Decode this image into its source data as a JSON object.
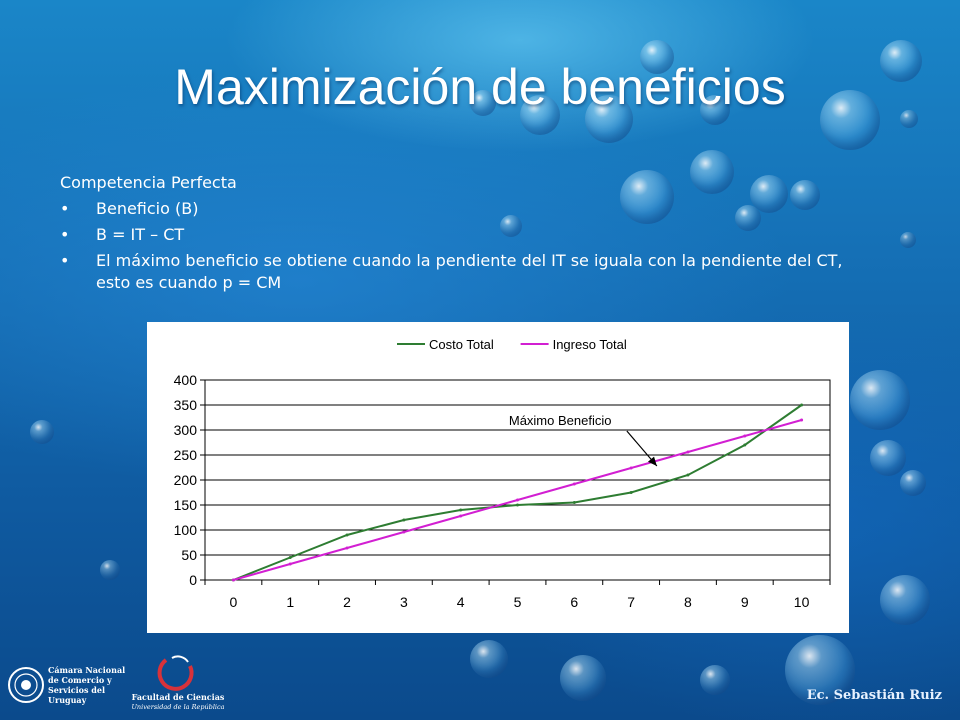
{
  "slide": {
    "title": "Maximización de beneficios",
    "subtitle": "Competencia Perfecta",
    "bullets": [
      "Beneficio (B)",
      "B = IT – CT",
      "El máximo beneficio se obtiene cuando la pendiente del IT se iguala con la pendiente del CT, esto es cuando p = CM"
    ],
    "bullet_glyph": "•"
  },
  "chart_data": {
    "type": "line",
    "x": [
      0,
      1,
      2,
      3,
      4,
      5,
      6,
      7,
      8,
      9,
      10
    ],
    "series": [
      {
        "name": "Costo Total",
        "color": "#2e7d32",
        "values": [
          0,
          45,
          90,
          120,
          140,
          150,
          155,
          175,
          210,
          270,
          350
        ]
      },
      {
        "name": "Ingreso Total",
        "color": "#d21fd2",
        "values": [
          0,
          32,
          64,
          96,
          128,
          160,
          192,
          224,
          256,
          288,
          320
        ]
      }
    ],
    "ylim": [
      0,
      400
    ],
    "yticks": [
      0,
      50,
      100,
      150,
      200,
      250,
      300,
      350,
      400
    ],
    "xticks": [
      0,
      1,
      2,
      3,
      4,
      5,
      6,
      7,
      8,
      9,
      10
    ],
    "grid": "horizontal",
    "legend": "top",
    "annotation": {
      "text": "Máximo Beneficio",
      "x": 7.4,
      "y": 220
    },
    "title": "",
    "xlabel": "",
    "ylabel": ""
  },
  "footer": {
    "logo_left_lines": [
      "Cámara Nacional",
      "de Comercio y",
      "Servicios del",
      "Uruguay"
    ],
    "logo_right_line1": "Facultad de Ciencias",
    "logo_right_line2": "Universidad de la República",
    "author": "Ec. Sebastián Ruiz"
  }
}
